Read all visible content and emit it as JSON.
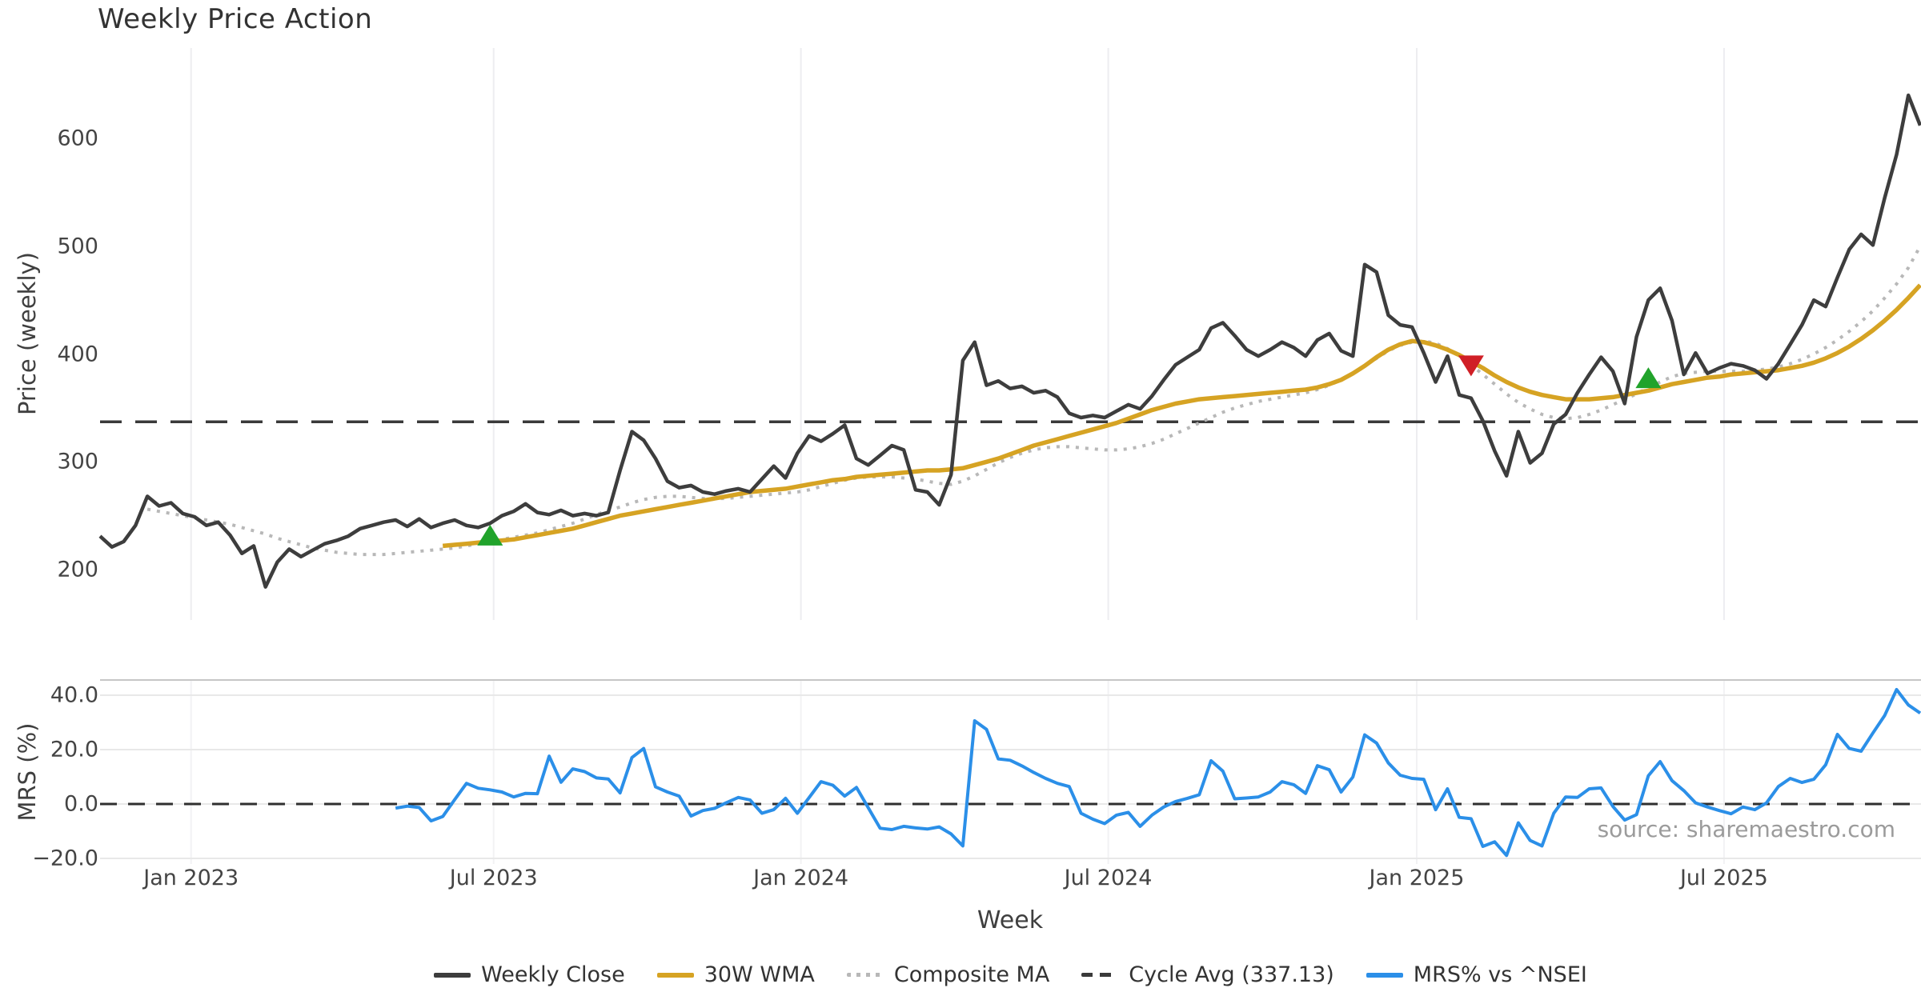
{
  "title": "Weekly Price Action",
  "price_chart": {
    "ylabel": "Price (weekly)",
    "yticks": [
      {
        "value": 200,
        "label": "200"
      },
      {
        "value": 300,
        "label": "300"
      },
      {
        "value": 400,
        "label": "400"
      },
      {
        "value": 500,
        "label": "500"
      },
      {
        "value": 600,
        "label": "600"
      }
    ],
    "cycle_avg_label": "Cycle Avg (337.13)"
  },
  "mrs_chart": {
    "ylabel": "MRS (%)",
    "yticks": [
      {
        "value": -20,
        "label": "−20.0"
      },
      {
        "value": 0,
        "label": "0.0"
      },
      {
        "value": 20,
        "label": "20.0"
      },
      {
        "value": 40,
        "label": "40.0"
      }
    ],
    "source_note": "source: sharemaestro.com"
  },
  "x_axis": {
    "label": "Week",
    "ticks": [
      {
        "label": "Jan 2023",
        "week": 7.7
      },
      {
        "label": "Jul 2023",
        "week": 33.3
      },
      {
        "label": "Jan 2024",
        "week": 59.3
      },
      {
        "label": "Jul 2024",
        "week": 85.3
      },
      {
        "label": "Jan 2025",
        "week": 111.4
      },
      {
        "label": "Jul 2025",
        "week": 137.4
      }
    ]
  },
  "legend": [
    {
      "label": "Weekly Close",
      "color": "#3d3d3d",
      "style": "solid"
    },
    {
      "label": "30W WMA",
      "color": "#d6a323",
      "style": "solid"
    },
    {
      "label": "Composite MA",
      "color": "#b8b8b8",
      "style": "dotted"
    },
    {
      "label": "Cycle Avg (337.13)",
      "color": "#3a3a3a",
      "style": "dashed"
    },
    {
      "label": "MRS% vs ^NSEI",
      "color": "#2b8fe8",
      "style": "solid"
    }
  ],
  "colors": {
    "weekly_close": "#3d3d3d",
    "wma_30w": "#d6a323",
    "composite_ma": "#b8b8b8",
    "cycle_avg": "#3a3a3a",
    "mrs": "#2b8fe8",
    "buy_marker": "#21a32b",
    "sell_marker": "#d01f26",
    "grid_vertical": "#ededf0",
    "grid_horizontal": "#e8e8e8",
    "mrs_top_spine": "#c6c6c6",
    "zero_line": "#2f2f2f"
  },
  "chart_data": {
    "type": "line",
    "title": "Weekly Price Action",
    "xlabel": "Week",
    "x_weeks": 155,
    "x_start": "Nov 2022",
    "x_end": "Oct 2025",
    "price_axis": {
      "label": "Price (weekly)",
      "ylim": [
        153,
        684
      ],
      "grid": "vertical-only"
    },
    "mrs_axis": {
      "label": "MRS (%)",
      "ylim": [
        -22.5,
        45.6
      ],
      "grid": "horizontal"
    },
    "cycle_avg": 337.13,
    "legend_position": "bottom-center",
    "series": [
      {
        "name": "Weekly Close",
        "axis": "price",
        "style": "solid",
        "color": "#3d3d3d",
        "values": [
          231,
          221,
          226,
          241,
          268,
          259,
          262,
          252,
          249,
          241,
          244,
          232,
          215,
          222,
          184,
          207,
          219,
          212,
          218,
          224,
          227,
          231,
          238,
          241,
          244,
          246,
          240,
          247,
          239,
          243,
          246,
          241,
          239,
          243,
          250,
          254,
          261,
          253,
          251,
          255,
          250,
          252,
          250,
          253,
          292,
          328,
          320,
          303,
          282,
          276,
          278,
          272,
          270,
          273,
          275,
          272,
          284,
          296,
          285,
          308,
          324,
          319,
          326,
          334,
          303,
          297,
          306,
          315,
          311,
          274,
          272,
          260,
          288,
          394,
          411,
          371,
          375,
          368,
          370,
          364,
          366,
          360,
          345,
          341,
          343,
          341,
          347,
          353,
          349,
          361,
          376,
          390,
          397,
          404,
          424,
          429,
          417,
          404,
          398,
          404,
          411,
          406,
          398,
          413,
          419,
          403,
          398,
          483,
          476,
          436,
          427,
          425,
          401,
          374,
          398,
          362,
          359,
          338,
          310,
          287,
          328,
          299,
          308,
          335,
          344,
          364,
          381,
          397,
          384,
          354,
          416,
          450,
          461,
          431,
          381,
          401,
          382,
          387,
          391,
          389,
          385,
          377,
          391,
          409,
          427,
          450,
          444,
          471,
          497,
          511,
          501,
          545,
          585,
          640,
          612
        ]
      },
      {
        "name": "30W WMA",
        "axis": "price",
        "style": "solid",
        "color": "#d6a323",
        "values": [
          null,
          null,
          null,
          null,
          null,
          null,
          null,
          null,
          null,
          null,
          null,
          null,
          null,
          null,
          null,
          null,
          null,
          null,
          null,
          null,
          null,
          null,
          null,
          null,
          null,
          null,
          null,
          null,
          null,
          222,
          223,
          224,
          225,
          226,
          227,
          228,
          230,
          232,
          234,
          236,
          238,
          241,
          244,
          247,
          250,
          252,
          254,
          256,
          258,
          260,
          262,
          264,
          266,
          268,
          270,
          272,
          273,
          274,
          275,
          277,
          279,
          281,
          283,
          284,
          286,
          287,
          288,
          289,
          290,
          291,
          292,
          292,
          293,
          294,
          297,
          300,
          303,
          307,
          311,
          315,
          318,
          321,
          324,
          327,
          330,
          333,
          336,
          340,
          344,
          348,
          351,
          354,
          356,
          358,
          359,
          360,
          361,
          362,
          363,
          364,
          365,
          366,
          367,
          369,
          372,
          376,
          382,
          389,
          397,
          404,
          409,
          412,
          411,
          408,
          404,
          399,
          393,
          387,
          380,
          374,
          369,
          365,
          362,
          360,
          358,
          358,
          358,
          359,
          360,
          362,
          364,
          366,
          369,
          372,
          374,
          376,
          378,
          379,
          381,
          382,
          383,
          384,
          385,
          387,
          389,
          392,
          396,
          401,
          407,
          414,
          422,
          431,
          441,
          452,
          464
        ]
      },
      {
        "name": "Composite MA",
        "axis": "price",
        "style": "dotted",
        "color": "#b8b8b8",
        "values": [
          null,
          null,
          null,
          null,
          256,
          254,
          252,
          250,
          248,
          246,
          244,
          242,
          239,
          236,
          233,
          229,
          226,
          223,
          220,
          218,
          216,
          215,
          214,
          214,
          214,
          215,
          216,
          217,
          218,
          219,
          220,
          222,
          224,
          226,
          228,
          230,
          232,
          234,
          237,
          240,
          243,
          247,
          251,
          255,
          258,
          262,
          265,
          267,
          268,
          268,
          267,
          266,
          266,
          266,
          267,
          268,
          269,
          270,
          271,
          272,
          274,
          277,
          280,
          283,
          285,
          286,
          286,
          286,
          285,
          284,
          282,
          280,
          279,
          282,
          287,
          293,
          299,
          304,
          308,
          311,
          313,
          314,
          314,
          313,
          312,
          311,
          311,
          312,
          314,
          317,
          321,
          326,
          331,
          336,
          341,
          346,
          350,
          353,
          356,
          358,
          360,
          362,
          364,
          367,
          371,
          376,
          382,
          389,
          396,
          403,
          408,
          411,
          412,
          410,
          405,
          398,
          390,
          381,
          372,
          363,
          355,
          349,
          344,
          341,
          340,
          341,
          344,
          348,
          353,
          358,
          363,
          369,
          374,
          379,
          382,
          383,
          384,
          384,
          384,
          384,
          385,
          386,
          388,
          391,
          395,
          400,
          406,
          413,
          421,
          430,
          440,
          452,
          465,
          480,
          500
        ]
      },
      {
        "name": "MRS% vs ^NSEI",
        "axis": "mrs",
        "style": "solid",
        "color": "#2b8fe8",
        "values": [
          null,
          null,
          null,
          null,
          null,
          null,
          null,
          null,
          null,
          null,
          null,
          null,
          null,
          null,
          null,
          null,
          null,
          null,
          null,
          null,
          null,
          null,
          null,
          null,
          null,
          -1.5,
          -0.8,
          -1.3,
          -6.2,
          -4.6,
          1.6,
          7.6,
          5.8,
          5.2,
          4.4,
          2.6,
          3.9,
          3.8,
          17.6,
          8.0,
          12.9,
          11.9,
          9.6,
          9.2,
          4.1,
          17.1,
          20.4,
          6.3,
          4.4,
          2.9,
          -4.4,
          -2.4,
          -1.6,
          0.5,
          2.4,
          1.5,
          -3.4,
          -2.1,
          2.1,
          -3.4,
          2.4,
          8.2,
          6.9,
          2.9,
          6.1,
          -1.4,
          -8.9,
          -9.4,
          -8.2,
          -8.8,
          -9.2,
          -8.4,
          -11.0,
          -15.4,
          30.6,
          27.4,
          16.6,
          16.1,
          14.0,
          11.6,
          9.4,
          7.6,
          6.4,
          -3.4,
          -5.6,
          -7.2,
          -4.1,
          -3.1,
          -8.2,
          -4.1,
          -1.1,
          0.9,
          2.1,
          3.4,
          15.9,
          12.1,
          1.9,
          2.2,
          2.6,
          4.4,
          8.2,
          7.1,
          3.9,
          14.1,
          12.6,
          4.4,
          9.9,
          25.4,
          22.4,
          15.1,
          10.6,
          9.4,
          9.1,
          -2.1,
          5.6,
          -4.9,
          -5.4,
          -15.6,
          -13.9,
          -18.9,
          -6.9,
          -13.4,
          -15.4,
          -3.4,
          2.6,
          2.4,
          5.6,
          5.9,
          -0.9,
          -5.9,
          -3.9,
          10.4,
          15.6,
          8.6,
          4.9,
          0.4,
          -1.1,
          -2.4,
          -3.6,
          -1.1,
          -2.1,
          0.4,
          6.4,
          9.4,
          7.9,
          9.1,
          14.4,
          25.6,
          20.4,
          19.4,
          26.1,
          32.6,
          42.1,
          36.4,
          33.4
        ]
      }
    ],
    "markers": {
      "buy": [
        {
          "week": 33,
          "price": 232
        },
        {
          "week": 131,
          "price": 378
        }
      ],
      "sell": [
        {
          "week": 116,
          "price": 389
        }
      ]
    }
  }
}
